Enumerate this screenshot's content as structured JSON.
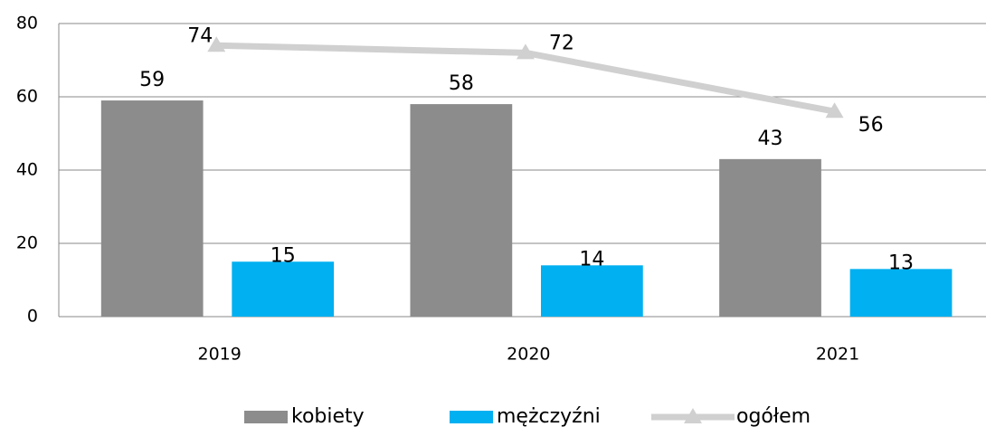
{
  "chart_data": {
    "type": "bar",
    "categories": [
      "2019",
      "2020",
      "2021"
    ],
    "series": [
      {
        "name": "kobiety",
        "color": "#8c8c8c",
        "values": [
          59,
          58,
          43
        ]
      },
      {
        "name": "mężczyźni",
        "color": "#00b0f0",
        "values": [
          15,
          14,
          13
        ]
      },
      {
        "name": "ogółem",
        "type": "line",
        "color": "#d0d0d0",
        "values": [
          74,
          72,
          56
        ]
      }
    ],
    "ylim": [
      0,
      80
    ],
    "yticks": [
      0,
      20,
      40,
      60,
      80
    ],
    "grid": true,
    "legend": "bottom"
  }
}
